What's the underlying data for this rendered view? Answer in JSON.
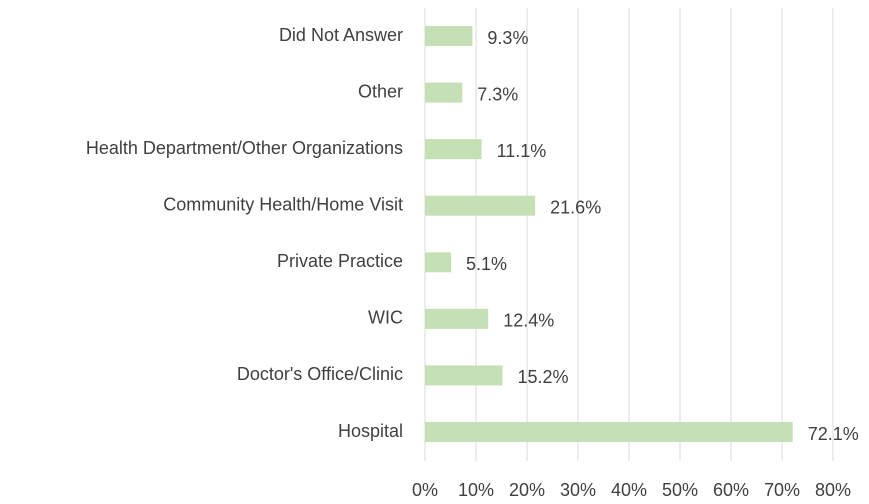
{
  "chart_data": {
    "type": "hbar",
    "categories": [
      "Did Not Answer",
      "Other",
      "Health Department/Other Organizations",
      "Community Health/Home Visit",
      "Private Practice",
      "WIC",
      "Doctor's Office/Clinic",
      "Hospital"
    ],
    "values": [
      9.3,
      7.3,
      11.1,
      21.6,
      5.1,
      12.4,
      15.2,
      72.1
    ],
    "value_labels": [
      "9.3%",
      "7.3%",
      "11.1%",
      "21.6%",
      "5.1%",
      "12.4%",
      "15.2%",
      "72.1%"
    ],
    "color": "#c5e0b4",
    "xlim": [
      0,
      80
    ],
    "xticks": [
      {
        "value": 0,
        "label": "0%"
      },
      {
        "value": 10,
        "label": "10%"
      },
      {
        "value": 20,
        "label": "20%"
      },
      {
        "value": 30,
        "label": "30%"
      },
      {
        "value": 40,
        "label": "40%"
      },
      {
        "value": 50,
        "label": "50%"
      },
      {
        "value": 60,
        "label": "60%"
      },
      {
        "value": 70,
        "label": "70%"
      },
      {
        "value": 80,
        "label": "80%"
      }
    ],
    "grid": true
  }
}
